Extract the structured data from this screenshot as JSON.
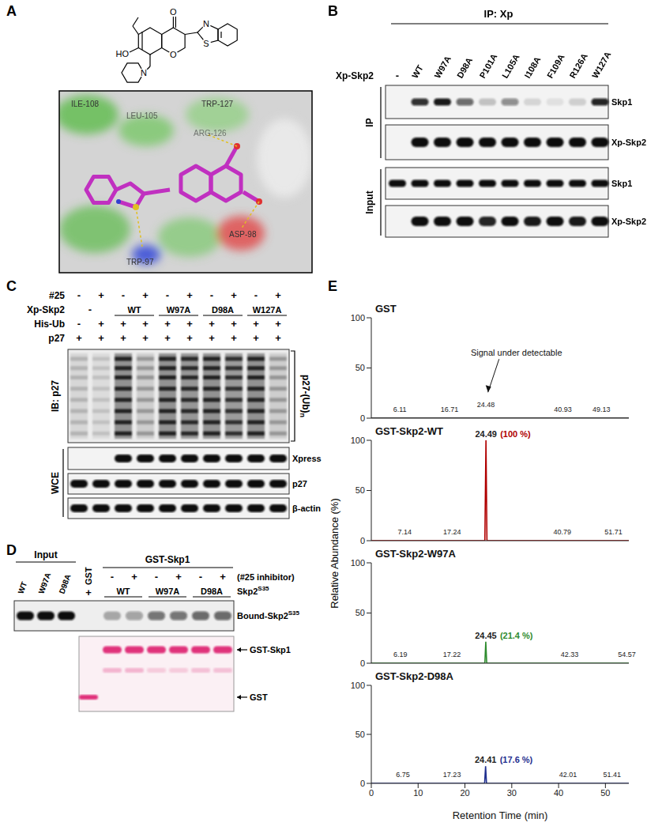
{
  "panels": {
    "A": {
      "label": "A",
      "structure_atoms": {
        "hydroxyl": "HO",
        "piperidine_n": "N",
        "ketone_o": "O",
        "ring_o": "O",
        "thiazole_n": "N",
        "thiazole_s": "S"
      },
      "residues": [
        "ILE-108",
        "LEU-105",
        "TRP-127",
        "ARG-126",
        "ASP-98",
        "TRP-97"
      ]
    },
    "B": {
      "label": "B",
      "ip_title": "IP: Xp",
      "row_title": "Xp-Skp2",
      "lanes": [
        "-",
        "WT",
        "W97A",
        "D98A",
        "P101A",
        "L105A",
        "I108A",
        "F109A",
        "R126A",
        "W127A"
      ],
      "blots": [
        {
          "group": "IP",
          "label": "Skp1",
          "intensity": [
            0,
            0.85,
            0.95,
            0.6,
            0.2,
            0.45,
            0.12,
            0.08,
            0.15,
            0.9
          ]
        },
        {
          "group": "IP",
          "label": "Xp-Skp2",
          "intensity": [
            0,
            1,
            1,
            1,
            1,
            1,
            1,
            1,
            1,
            1
          ]
        },
        {
          "group": "Input",
          "label": "Skp1",
          "intensity": [
            1,
            1,
            1,
            1,
            1,
            1,
            1,
            1,
            1,
            1
          ]
        },
        {
          "group": "Input",
          "label": "Xp-Skp2",
          "intensity": [
            0,
            1,
            1,
            1,
            0.9,
            1,
            0.95,
            1,
            0.95,
            1
          ]
        }
      ]
    },
    "C": {
      "label": "C",
      "rows": [
        {
          "label": "#25",
          "signs": [
            "-",
            "+",
            "-",
            "+",
            "-",
            "+",
            "-",
            "+",
            "-",
            "+"
          ]
        },
        {
          "label": "Xp-Skp2",
          "groups": [
            {
              "label": "-",
              "span": 2
            },
            {
              "label": "WT",
              "span": 2
            },
            {
              "label": "W97A",
              "span": 2
            },
            {
              "label": "D98A",
              "span": 2
            },
            {
              "label": "W127A",
              "span": 2
            }
          ]
        },
        {
          "label": "His-Ub",
          "signs": [
            "-",
            "+",
            "+",
            "+",
            "+",
            "+",
            "+",
            "+",
            "+",
            "+"
          ]
        },
        {
          "label": "p27",
          "signs": [
            "+",
            "+",
            "+",
            "+",
            "+",
            "+",
            "+",
            "+",
            "+",
            "+"
          ]
        }
      ],
      "ib_label": "IB: p27",
      "smear_label": "p27-(Ub)",
      "smear_sub": "n",
      "ib_intensity": [
        0.2,
        0.15,
        1,
        0.35,
        1,
        0.95,
        1,
        0.9,
        1,
        0.35
      ],
      "wce_label": "WCE",
      "wce_blots": [
        {
          "label": "Xpress",
          "intensity": [
            0,
            0,
            1,
            1,
            1,
            1,
            1,
            1,
            1,
            1
          ]
        },
        {
          "label": "p27",
          "intensity": [
            1,
            1,
            1,
            1,
            1,
            1,
            1,
            1,
            1,
            1
          ]
        },
        {
          "label": "β-actin",
          "intensity": [
            1,
            1,
            1,
            1,
            1,
            1,
            1,
            1,
            1,
            1
          ]
        }
      ]
    },
    "D": {
      "label": "D",
      "input": {
        "label": "Input",
        "lanes": [
          "WT",
          "W97A",
          "D98A"
        ]
      },
      "gst": {
        "label": "GST",
        "sign": "+"
      },
      "pulldown": {
        "label": "GST-Skp1",
        "treatment": "(#25 inhibitor)",
        "signs": [
          "-",
          "+",
          "-",
          "+",
          "-",
          "+"
        ],
        "groups": [
          "WT",
          "W97A",
          "D98A"
        ]
      },
      "probe": {
        "text": "Skp2",
        "sup": "S35"
      },
      "autorad": {
        "label": "Bound-Skp2",
        "sup": "S35",
        "intensity": [
          1,
          1,
          1,
          0,
          0.3,
          0.35,
          0.55,
          0.55,
          0.6,
          0.6
        ]
      },
      "ponceau": [
        {
          "label": "GST-Skp1",
          "intensity": [
            0,
            1,
            1,
            1,
            1,
            1,
            1
          ]
        },
        {
          "intensity": [
            0,
            0.3,
            0.3,
            0.2,
            0.2,
            0.25,
            0.25
          ]
        },
        {
          "label": "GST",
          "intensity": [
            1,
            0,
            0,
            0,
            0,
            0,
            0
          ]
        }
      ]
    }
  },
  "panel_e": {
    "label": "E",
    "ylabel": "Relative Abundance (%)"
  },
  "chart_data": [
    {
      "type": "line",
      "title": "GST",
      "color": "#000000",
      "x": [
        0,
        55
      ],
      "values": [
        0,
        0
      ],
      "xlim": [
        0,
        55
      ],
      "xticks": [
        0,
        10,
        20,
        30,
        40,
        50
      ],
      "ylim": [
        0,
        100
      ],
      "yticks": [
        0,
        50,
        100
      ],
      "tick_labels": "y",
      "annotations": [
        {
          "x": 6.11,
          "y": 3,
          "label": "6.11"
        },
        {
          "x": 16.71,
          "y": 3,
          "label": "16.71"
        },
        {
          "x": 24.48,
          "y": 8,
          "label": "24.48"
        },
        {
          "x": 40.93,
          "y": 3,
          "label": "40.93"
        },
        {
          "x": 49.13,
          "y": 3,
          "label": "49.13"
        },
        {
          "x": 31,
          "y": 62,
          "text": "Signal under detectable"
        }
      ]
    },
    {
      "type": "line",
      "title": "GST-Skp2-WT",
      "color": "#b00000",
      "x": [
        0,
        24.25,
        24.49,
        24.7,
        55
      ],
      "values": [
        0,
        0,
        100,
        0,
        0
      ],
      "xlim": [
        0,
        55
      ],
      "xticks": [
        0,
        10,
        20,
        30,
        40,
        50
      ],
      "ylim": [
        0,
        100
      ],
      "yticks": [
        0,
        50,
        100
      ],
      "tick_labels": "y",
      "annotations": [
        {
          "x": 7.14,
          "y": 3,
          "label": "7.14"
        },
        {
          "x": 17.24,
          "y": 3,
          "label": "17.24"
        },
        {
          "x": 24.49,
          "y": 100,
          "label": "24.49",
          "percent": {
            "value": 100,
            "label": "(100 %)"
          }
        },
        {
          "x": 40.79,
          "y": 3,
          "label": "40.79"
        },
        {
          "x": 51.71,
          "y": 3,
          "label": "51.71"
        }
      ]
    },
    {
      "type": "line",
      "title": "GST-Skp2-W97A",
      "color": "#2e8b2e",
      "x": [
        0,
        24.25,
        24.45,
        24.65,
        55
      ],
      "values": [
        0,
        0,
        21.4,
        0,
        0
      ],
      "xlim": [
        0,
        55
      ],
      "xticks": [
        0,
        10,
        20,
        30,
        40,
        50
      ],
      "ylim": [
        0,
        100
      ],
      "yticks": [
        0,
        50,
        100
      ],
      "tick_labels": "y",
      "annotations": [
        {
          "x": 6.19,
          "y": 3,
          "label": "6.19"
        },
        {
          "x": 17.22,
          "y": 3,
          "label": "17.22"
        },
        {
          "x": 24.45,
          "y": 21.4,
          "label": "24.45",
          "percent": {
            "value": 21.4,
            "label": "(21.4 %)"
          }
        },
        {
          "x": 42.33,
          "y": 3,
          "label": "42.33"
        },
        {
          "x": 54.57,
          "y": 3,
          "label": "54.57"
        }
      ]
    },
    {
      "type": "line",
      "title": "GST-Skp2-D98A",
      "color": "#1f2f8f",
      "x": [
        0,
        24.2,
        24.41,
        24.6,
        55
      ],
      "values": [
        0,
        0,
        17.6,
        0,
        0
      ],
      "xlim": [
        0,
        55
      ],
      "xticks": [
        0,
        10,
        20,
        30,
        40,
        50
      ],
      "ylim": [
        0,
        100
      ],
      "yticks": [
        0,
        50,
        100
      ],
      "xlabel": "Retention Time (min)",
      "annotations": [
        {
          "x": 6.75,
          "y": 3,
          "label": "6.75"
        },
        {
          "x": 17.23,
          "y": 3,
          "label": "17.23"
        },
        {
          "x": 24.41,
          "y": 17.6,
          "label": "24.41",
          "percent": {
            "value": 17.6,
            "label": "(17.6 %)"
          }
        },
        {
          "x": 42.01,
          "y": 3,
          "label": "42.01"
        },
        {
          "x": 51.41,
          "y": 3,
          "label": "51.41"
        }
      ]
    }
  ]
}
